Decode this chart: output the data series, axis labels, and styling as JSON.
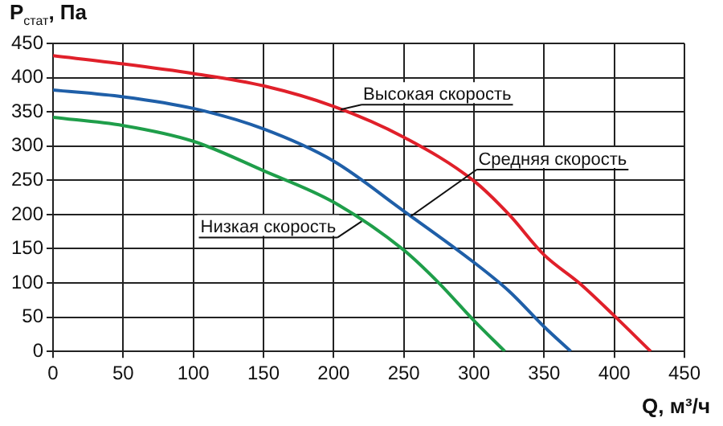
{
  "chart_data": {
    "type": "line",
    "ylabel": "P$_{стат}$, Па",
    "xlabel": "Q, м³/ч",
    "xlim": [
      0,
      450
    ],
    "xticks": [
      0,
      50,
      100,
      150,
      200,
      250,
      300,
      350,
      400,
      450
    ],
    "ylim": [
      0,
      450
    ],
    "yticks": [
      0,
      50,
      100,
      150,
      200,
      250,
      300,
      350,
      400,
      450
    ],
    "grid": true,
    "legend": false,
    "marker": "none",
    "line_style": "solid",
    "series": [
      {
        "name": "Высокая скорость",
        "color": "#e0202a",
        "x": [
          0,
          50,
          100,
          150,
          200,
          250,
          300,
          325,
          350,
          375,
          400,
          426
        ],
        "values": [
          432,
          420,
          406,
          388,
          358,
          313,
          249,
          200,
          141,
          100,
          52,
          0
        ]
      },
      {
        "name": "Средняя скорость",
        "color": "#1f5fa8",
        "x": [
          0,
          50,
          100,
          150,
          200,
          250,
          300,
          325,
          350,
          369
        ],
        "values": [
          382,
          372,
          355,
          325,
          278,
          205,
          130,
          88,
          36,
          0
        ]
      },
      {
        "name": "Низкая скорость",
        "color": "#1f9e4a",
        "x": [
          0,
          50,
          100,
          150,
          200,
          250,
          275,
          300,
          322
        ],
        "values": [
          342,
          330,
          307,
          264,
          218,
          148,
          100,
          45,
          0
        ]
      }
    ]
  }
}
